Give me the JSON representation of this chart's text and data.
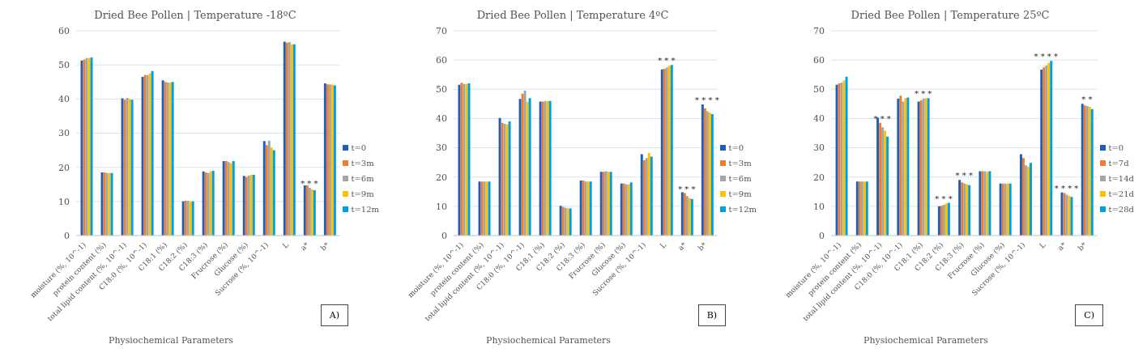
{
  "chart_data": [
    {
      "type": "bar",
      "title": "Dried Bee Pollen | Temperature -18ºC",
      "xlabel": "Physiochemical Parameters",
      "categories": [
        "moisture (%, 10^-1)",
        "protein content (%)",
        "total lipid content (%, 10^-1)",
        "C18:0 (%, 10^-1)",
        "C18:1 (%)",
        "C18:2 (%)",
        "C18:3 (%)",
        "Frucrose (%)",
        "Glucose (%)",
        "Sucrose (%, 10^-1)",
        "L",
        "a*",
        "b*"
      ],
      "series": [
        {
          "name": "t=0",
          "color": "#1f5fb8",
          "values": [
            51.3,
            18.5,
            40.2,
            46.5,
            45.5,
            10,
            18.8,
            21.8,
            17.5,
            27.7,
            56.8,
            14.7,
            44.6
          ]
        },
        {
          "name": "t=3m",
          "color": "#ed7d31",
          "values": [
            51.6,
            18.5,
            39.8,
            47,
            45,
            10.2,
            18.5,
            21.8,
            17.2,
            26.5,
            56.5,
            14.7,
            44.3
          ]
        },
        {
          "name": "t=6m",
          "color": "#a5a5a5",
          "values": [
            52,
            18.3,
            40.3,
            47,
            44.8,
            10.2,
            18.3,
            21.5,
            17.6,
            27.8,
            56.7,
            14,
            44.3
          ]
        },
        {
          "name": "t=9m",
          "color": "#ffc000",
          "values": [
            52,
            18.3,
            40,
            47.5,
            44.8,
            10,
            18.8,
            21.2,
            17.8,
            25.8,
            56,
            13.5,
            44.2
          ]
        },
        {
          "name": "t=12m",
          "color": "#00a0e0",
          "values": [
            52.2,
            18.3,
            39.8,
            48.2,
            45,
            10,
            19,
            21.8,
            17.8,
            25,
            56,
            13.3,
            44
          ]
        }
      ],
      "ylim": [
        0,
        60
      ],
      "yticks": [
        0,
        10,
        20,
        30,
        40,
        50,
        60
      ],
      "grid": "y",
      "legend": "right",
      "annotations": [
        "A)",
        {
          "text": "* * *",
          "x": "a*",
          "y": 14
        }
      ]
    },
    {
      "type": "bar",
      "title": "Dried Bee Pollen | Temperature 4ºC",
      "xlabel": "Physiochemical Parameters",
      "categories": [
        "moisture (%, 10^-1)",
        "protein content (%)",
        "total lipid content (%, 10^-1)",
        "C18:0 (%, 10^-1)",
        "C18:1 (%)",
        "C18:2 (%)",
        "C18:3 (%)",
        "Frucrose (%)",
        "Glucose (%)",
        "Sucrose (%, 10^-1)",
        "L",
        "a*",
        "b*"
      ],
      "series": [
        {
          "name": "t=0",
          "color": "#1f5fb8",
          "values": [
            51.5,
            18.5,
            40.2,
            46.7,
            45.8,
            10.2,
            18.8,
            21.8,
            17.8,
            27.8,
            56.8,
            14.8,
            44.8
          ]
        },
        {
          "name": "t=3m",
          "color": "#ed7d31",
          "values": [
            52.2,
            18.5,
            38.5,
            48.5,
            45.8,
            9.8,
            18.8,
            21.8,
            17.8,
            25.8,
            57,
            14.5,
            43.5
          ]
        },
        {
          "name": "t=6m",
          "color": "#a5a5a5",
          "values": [
            51.8,
            18.5,
            38.2,
            49.5,
            46,
            9.5,
            18.5,
            22,
            17.5,
            26.5,
            57.5,
            13.5,
            42.5
          ]
        },
        {
          "name": "t=9m",
          "color": "#ffc000",
          "values": [
            51.8,
            18.5,
            38,
            45.7,
            46,
            9.3,
            18.5,
            21.8,
            17.5,
            28.2,
            58,
            12.8,
            42
          ]
        },
        {
          "name": "t=12m",
          "color": "#00a0e0",
          "values": [
            52,
            18.5,
            39,
            47,
            46,
            9.3,
            18.5,
            21.8,
            18.2,
            27,
            58.3,
            12.5,
            41.5
          ]
        }
      ],
      "ylim": [
        0,
        70
      ],
      "yticks": [
        0,
        10,
        20,
        30,
        40,
        50,
        60,
        70
      ],
      "grid": "y",
      "legend": "right",
      "annotations": [
        "B)",
        {
          "text": "* * *",
          "x": "L",
          "y": 58.3
        },
        {
          "text": "* * *",
          "x": "a*",
          "y": 14.5
        },
        {
          "text": "* * * *",
          "x": "b*",
          "y": 44.8
        }
      ]
    },
    {
      "type": "bar",
      "title": "Dried Bee Pollen | Temperature 25ºC",
      "xlabel": "Physiochemical Parameters",
      "categories": [
        "moisture (%, 10^-1)",
        "protein content (%)",
        "total lipid content (%, 10^-1)",
        "C18:0 (%, 10^-1)",
        "C18:1 (%)",
        "C18:2 (%)",
        "C18:3 (%)",
        "Frucrose (%)",
        "Glucose (%)",
        "Sucrose (%, 10^-1)",
        "L",
        "a*",
        "b*"
      ],
      "series": [
        {
          "name": "t=0",
          "color": "#1f5fb8",
          "values": [
            51.5,
            18.5,
            40.3,
            46.8,
            45.8,
            10,
            19,
            22,
            17.8,
            27.8,
            56.7,
            14.7,
            45
          ]
        },
        {
          "name": "t=7d",
          "color": "#ed7d31",
          "values": [
            52,
            18.5,
            38.5,
            47.8,
            46.2,
            10.2,
            18.2,
            22,
            17.8,
            26.5,
            57.5,
            14.5,
            44.5
          ]
        },
        {
          "name": "t=14d",
          "color": "#a5a5a5",
          "values": [
            52.3,
            18.5,
            37,
            45.8,
            46.8,
            10.5,
            17.8,
            22,
            17.8,
            24,
            58.2,
            14,
            44.3
          ]
        },
        {
          "name": "t=21d",
          "color": "#ffc000",
          "values": [
            53,
            18.5,
            35.8,
            47,
            47,
            11,
            17.6,
            21.8,
            17.8,
            23.5,
            59,
            13.5,
            44
          ]
        },
        {
          "name": "t=28d",
          "color": "#00a0e0",
          "values": [
            54.3,
            18.5,
            33.8,
            47.2,
            47,
            11.2,
            17.2,
            22,
            17.8,
            24.8,
            59.7,
            13.2,
            43.2
          ]
        }
      ],
      "ylim": [
        0,
        70
      ],
      "yticks": [
        0,
        10,
        20,
        30,
        40,
        50,
        60,
        70
      ],
      "grid": "y",
      "legend": "right",
      "annotations": [
        "C)",
        {
          "text": "* * *",
          "x": "total lipid content (%, 10^-1)",
          "y": 38.5
        },
        {
          "text": "* * *",
          "x": "C18:1 (%)",
          "y": 47
        },
        {
          "text": "* * *",
          "x": "C18:2 (%)",
          "y": 11.2
        },
        {
          "text": "* * *",
          "x": "C18:3 (%)",
          "y": 19
        },
        {
          "text": "* * * *",
          "x": "L",
          "y": 59.7
        },
        {
          "text": "* * * *",
          "x": "a*",
          "y": 14.7
        },
        {
          "text": "* *",
          "x": "b*",
          "y": 45
        }
      ]
    }
  ]
}
